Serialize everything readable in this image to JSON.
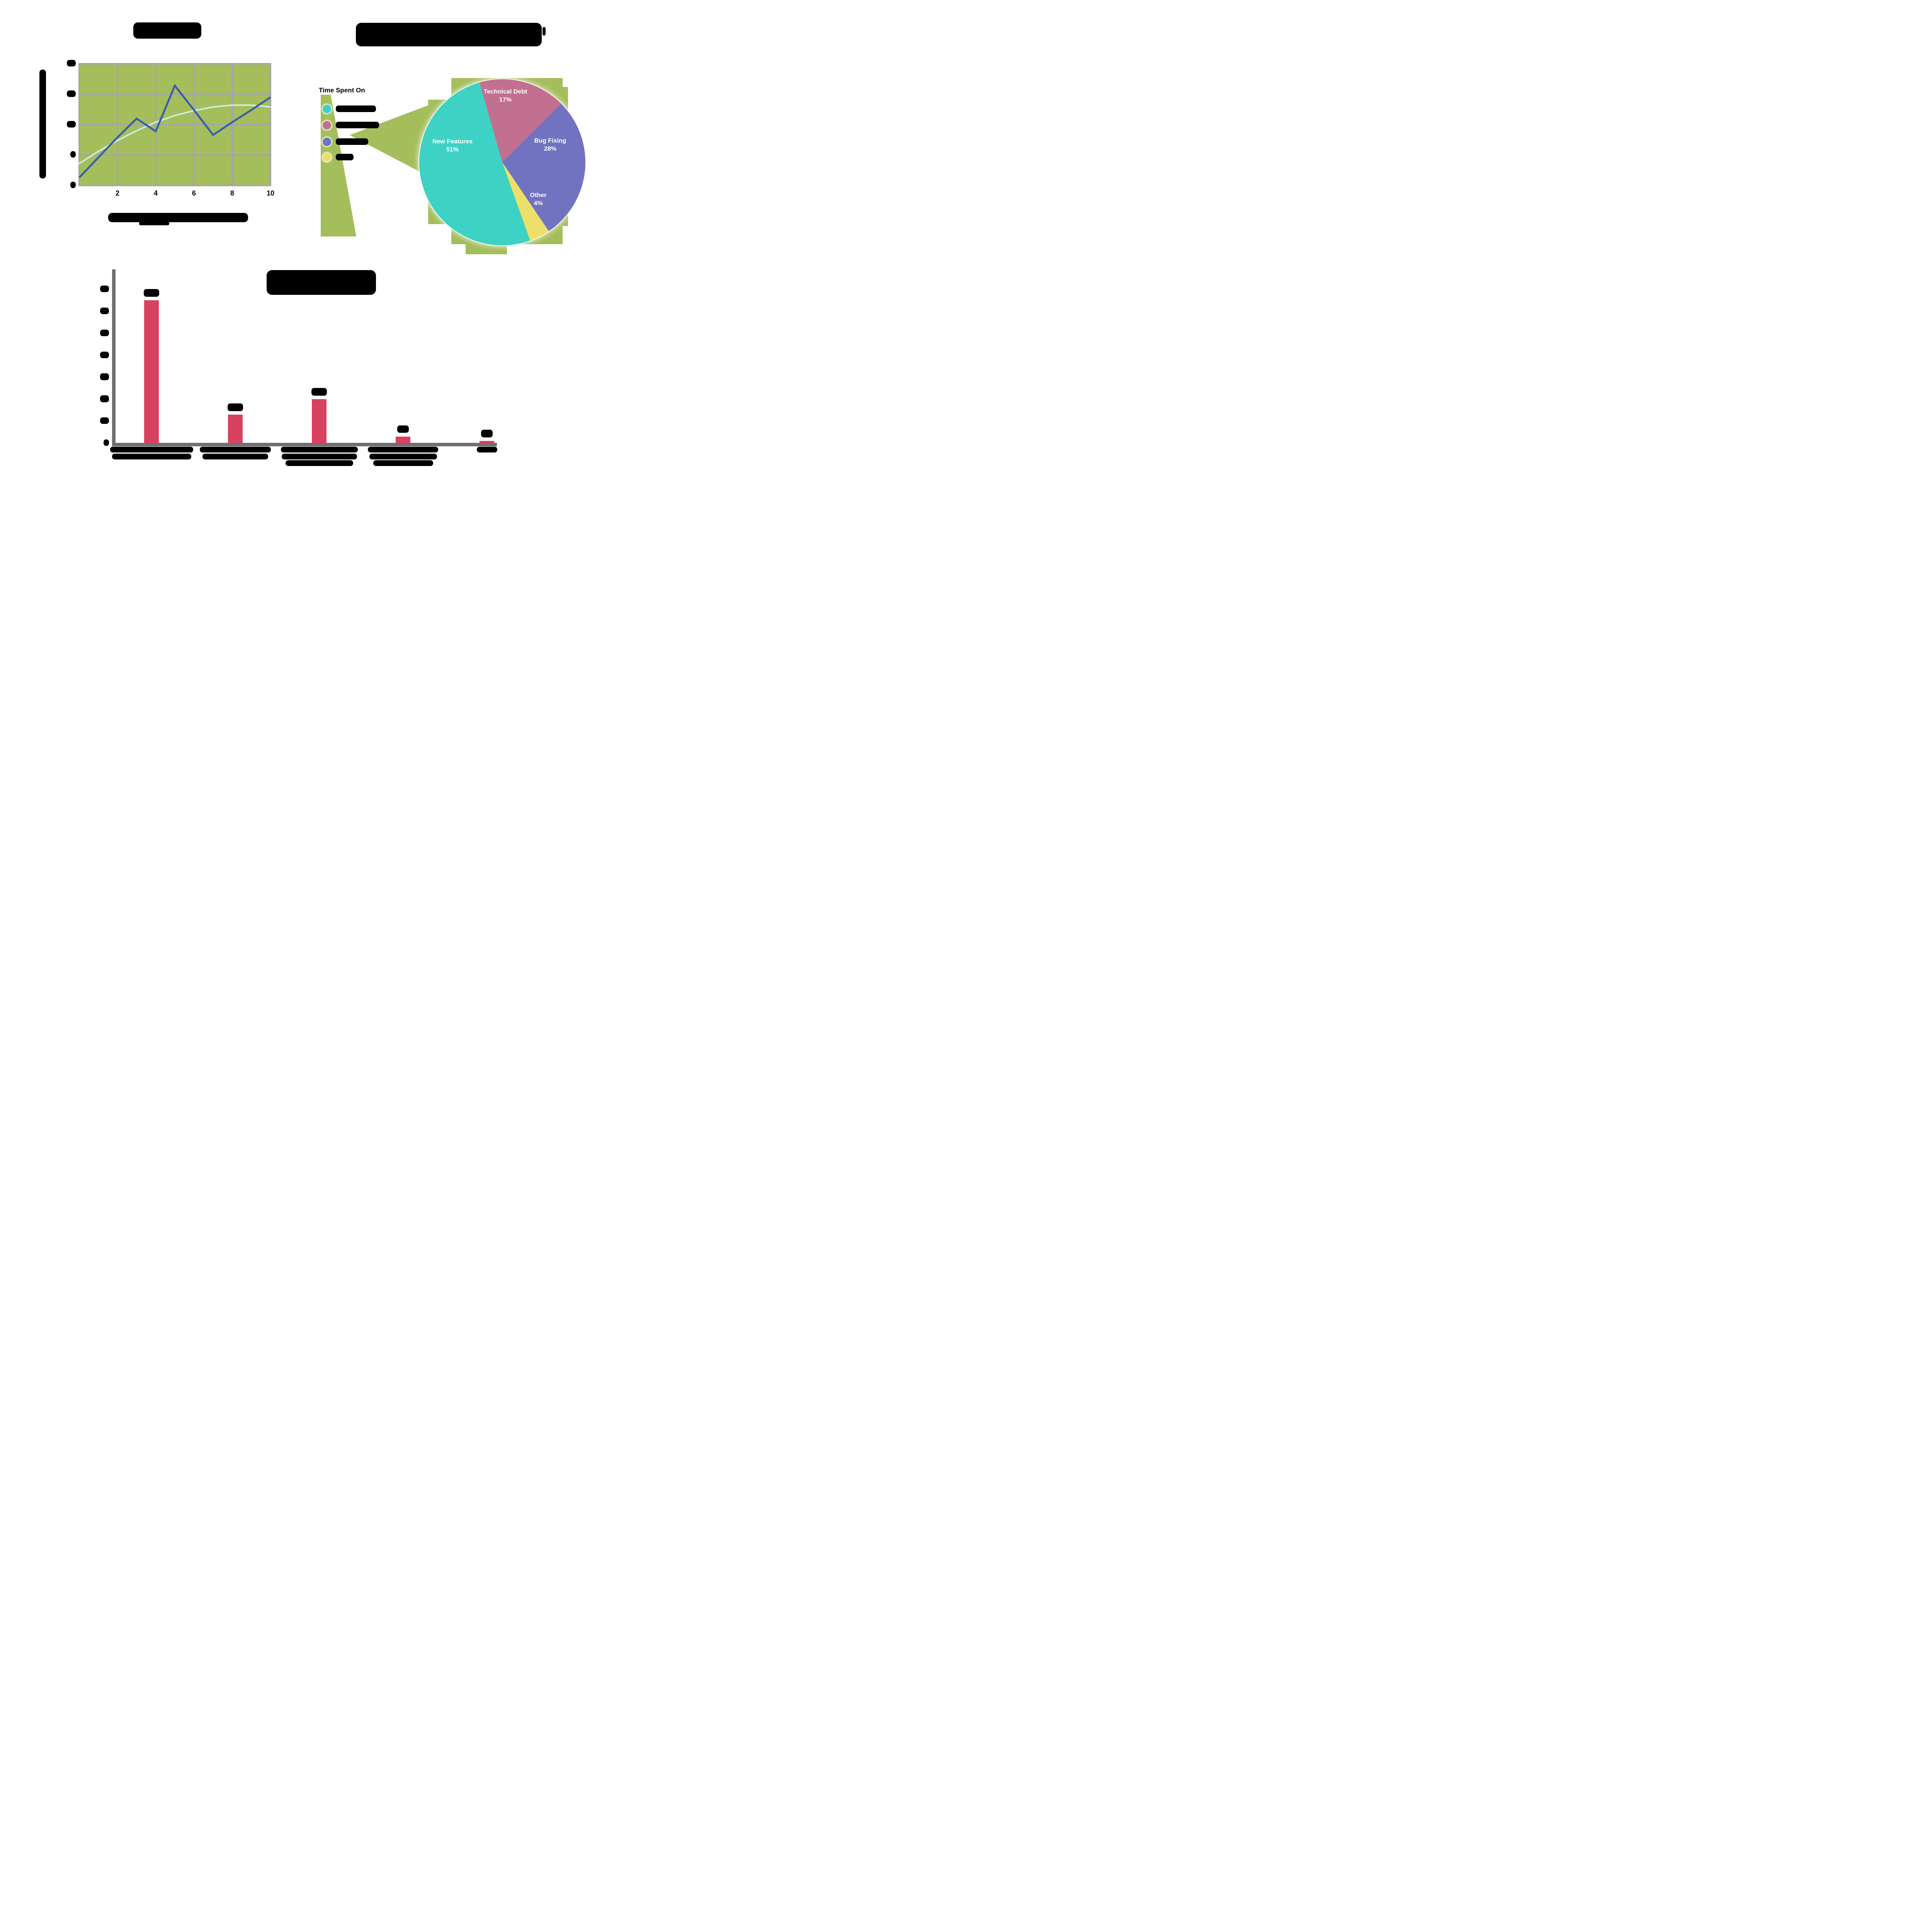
{
  "palette": {
    "panel_green": "#A4BE5C",
    "teal": "#3DD2C4",
    "mauve": "#C1708F",
    "purple": "#7173C0",
    "yellow": "#EDE06A",
    "bar_pink": "#D8415F",
    "blue_line": "#3B5EAA",
    "trend_line": "#CDEDE4",
    "grid_gray": "#A6A6A6",
    "axis_gray": "#6E6F72",
    "text_black": "#000000",
    "label_white": "#FFFFFF"
  },
  "line_chart": {
    "title_illegible": true,
    "x_axis_title_illegible": true,
    "y_axis_title_illegible": true,
    "x_tick_labels": [
      "2",
      "4",
      "6",
      "8",
      "10"
    ],
    "y_tick_labels": [
      "20",
      "15",
      "10",
      "5",
      "0"
    ],
    "y_tick_labels_illegible": true
  },
  "pie_section": {
    "title_illegible": true,
    "legend_title": "Time Spent On",
    "legend_labels_illegible": true
  },
  "bar_chart": {
    "title_illegible": true,
    "y_tick_labels": [
      "70",
      "60",
      "50",
      "40",
      "30",
      "20",
      "10",
      "0"
    ],
    "value_labels": [
      "65%",
      "13%",
      "20%",
      "3%",
      "1%"
    ],
    "value_labels_illegible": true,
    "category_labels_illegible": true,
    "category_blob_line_widths": [
      [
        215,
        205
      ],
      [
        184,
        170
      ],
      [
        199,
        195,
        175
      ],
      [
        182,
        175,
        155
      ],
      [
        53
      ]
    ]
  },
  "chart_data": [
    {
      "type": "line",
      "title": "(illegible black blob)",
      "x": [
        0,
        1,
        2,
        3,
        4,
        5,
        6,
        7,
        8,
        9,
        10
      ],
      "xticks": [
        2,
        4,
        6,
        8,
        10
      ],
      "ylim": [
        0,
        20
      ],
      "yticks": [
        0,
        5,
        10,
        15,
        20
      ],
      "grid": true,
      "plot_bg": "#A4BE5C",
      "series": [
        {
          "name": "data (illegible legend-less series)",
          "color": "#3B5EAA",
          "values": [
            1.3,
            4.6,
            7.9,
            11.0,
            8.9,
            16.4,
            12.4,
            8.3,
            10.4,
            12.4,
            14.5
          ]
        },
        {
          "name": "trend (smooth pale curve)",
          "color": "#CDEDE4",
          "values": [
            3.6,
            5.6,
            7.4,
            9.0,
            10.4,
            11.5,
            12.3,
            12.9,
            13.2,
            13.2,
            12.9
          ]
        }
      ],
      "axis_labels": "illegible"
    },
    {
      "type": "pie",
      "title": "(illegible black blob)",
      "legend_title": "Time Spent On",
      "legend_position": "left",
      "start_angle_deg": -16,
      "slices": [
        {
          "label": "Technical Debt",
          "pct": 17,
          "color": "#C1708F"
        },
        {
          "label": "Bug Fixing",
          "pct": 28,
          "color": "#7173C0"
        },
        {
          "label": "Other",
          "pct": 4,
          "color": "#EDE06A"
        },
        {
          "label": "New Features",
          "pct": 51,
          "color": "#3DD2C4"
        }
      ],
      "legend_order": [
        "New Features",
        "Technical Debt",
        "Bug Fixing",
        "Other"
      ],
      "legend_colors": [
        "#3DD2C4",
        "#C1708F",
        "#7173C0",
        "#EDE06A"
      ]
    },
    {
      "type": "bar",
      "title": "(illegible black blob)",
      "categories": [
        "(illegible)",
        "(illegible)",
        "(illegible)",
        "(illegible)",
        "(illegible)"
      ],
      "values": [
        65,
        13,
        20,
        3,
        1
      ],
      "data_labels": [
        "65%",
        "13%",
        "20%",
        "3%",
        "1%"
      ],
      "bar_color": "#D8415F",
      "ylim": [
        0,
        70
      ],
      "yticks": [
        0,
        10,
        20,
        30,
        40,
        50,
        60,
        70
      ],
      "grid": false
    }
  ]
}
